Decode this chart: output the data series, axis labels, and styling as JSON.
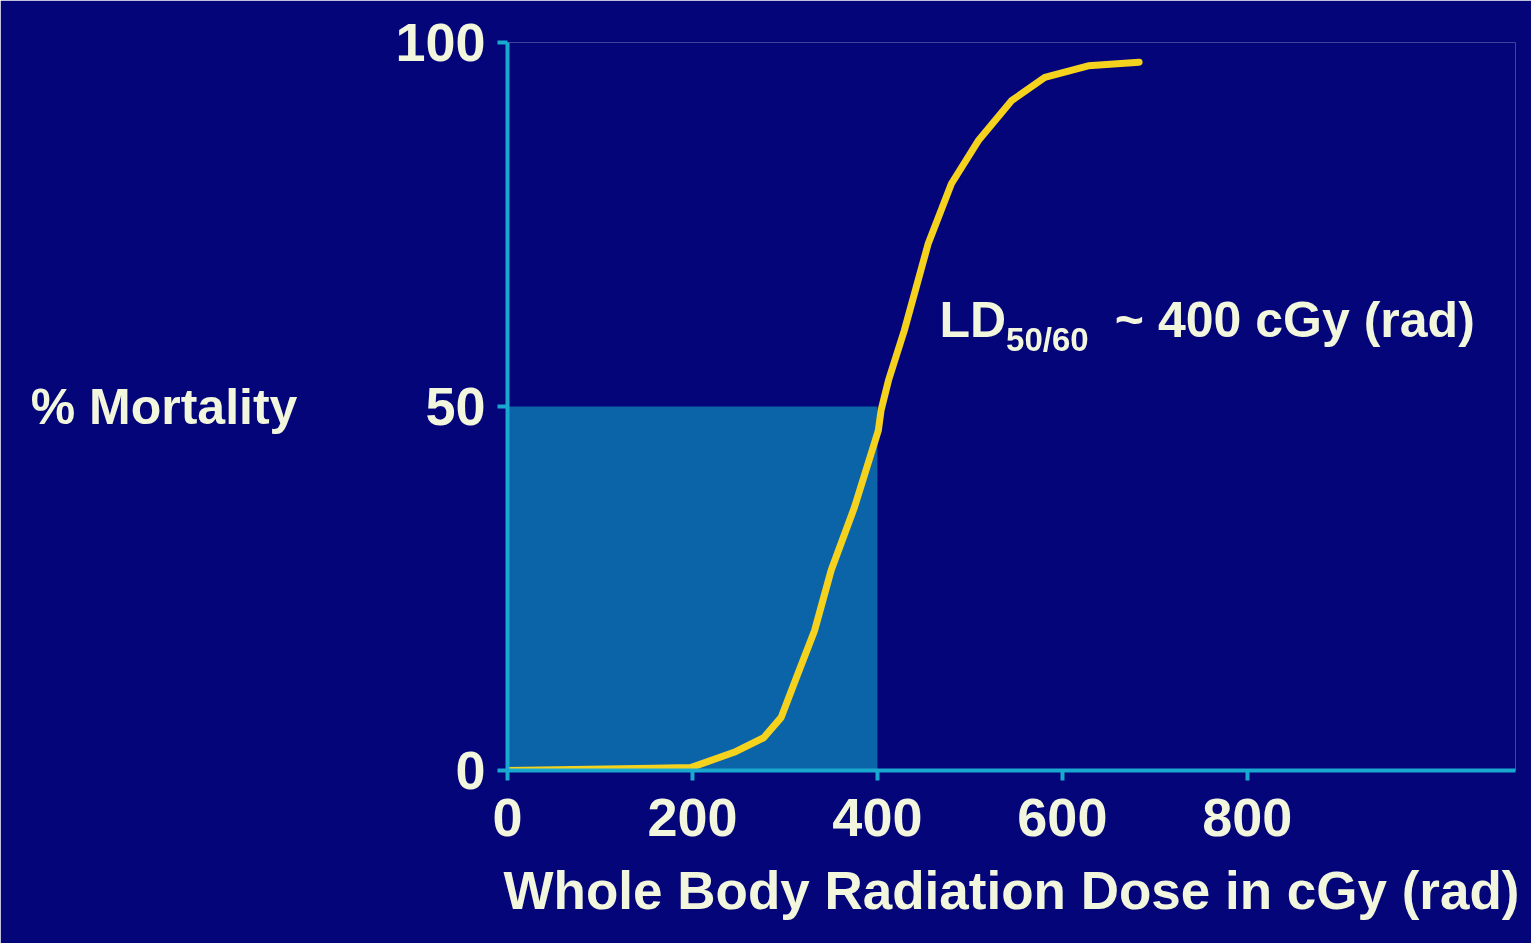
{
  "chart_data": {
    "type": "line",
    "xlabel": "Whole Body Radiation Dose in cGy (rad)",
    "ylabel": "% Mortality",
    "xlim": [
      0,
      1090
    ],
    "xticks": [
      0,
      200,
      400,
      600,
      800
    ],
    "ylim": [
      0,
      100
    ],
    "yticks": [
      0,
      50,
      100
    ],
    "grid": false,
    "series": [
      {
        "type": "area",
        "color": "#0b64a8",
        "x": [
          0,
          400
        ],
        "values": [
          50,
          50
        ]
      },
      {
        "color": "#f5d21e",
        "x": [
          0,
          158,
          198,
          245,
          277,
          296,
          314,
          332,
          350,
          375,
          401,
          404,
          412,
          429,
          455,
          480,
          509,
          545,
          581,
          628,
          683
        ],
        "values": [
          0,
          0.3,
          0.4,
          2.5,
          4.5,
          7.3,
          13.3,
          19.2,
          27.5,
          36.1,
          46.7,
          49.5,
          53.6,
          60.4,
          72.4,
          80.6,
          86.5,
          92.0,
          95.2,
          96.8,
          97.3
        ]
      }
    ],
    "annotations": [
      {
        "text": "LD$_{50/60}$ ~ 400 cGy (rad)",
        "x": 400,
        "y": 50
      }
    ]
  }
}
